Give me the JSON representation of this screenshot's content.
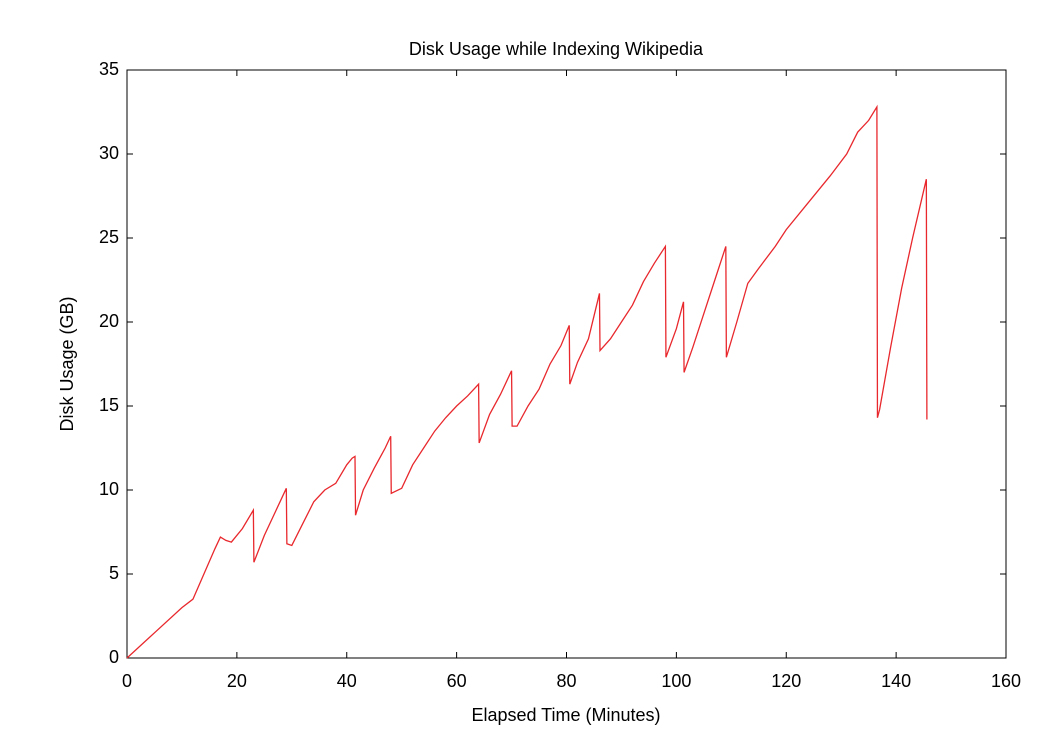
{
  "chart_data": {
    "type": "line",
    "title": "Disk Usage while Indexing Wikipedia",
    "x_label": "Elapsed Time (Minutes)",
    "y_label": "Disk Usage (GB)",
    "xlim": [
      0,
      160
    ],
    "xticks": [
      0,
      20,
      40,
      60,
      80,
      100,
      120,
      140,
      160
    ],
    "ylim": [
      0,
      35
    ],
    "yticks": [
      0,
      5,
      10,
      15,
      20,
      25,
      30,
      35
    ],
    "grid": false,
    "series": [
      {
        "name": "Disk Usage",
        "color": "#e8282d",
        "x": [
          0,
          5,
          10,
          12,
          14,
          16,
          17,
          18,
          19,
          21,
          23,
          23.1,
          25,
          27,
          29,
          29.1,
          30,
          32,
          34,
          36,
          38,
          40,
          41,
          41.5,
          41.6,
          43,
          45,
          47,
          48,
          48.1,
          50,
          52,
          54,
          56,
          58,
          60,
          62,
          64,
          64.1,
          66,
          68,
          70,
          70.1,
          71,
          73,
          75,
          77,
          79,
          80.5,
          80.6,
          82,
          84,
          86,
          86.1,
          88,
          90,
          92,
          94,
          96,
          98,
          98.1,
          100,
          101.3,
          101.4,
          103,
          105,
          107,
          109,
          109.1,
          111,
          113,
          115,
          118,
          120,
          124,
          128,
          131,
          133,
          135,
          136.5,
          136.6,
          137,
          139,
          141,
          143,
          145.5,
          145.6
        ],
        "values": [
          0,
          1.5,
          3,
          3.5,
          5,
          6.5,
          7.2,
          7,
          6.9,
          7.7,
          8.8,
          5.7,
          7.3,
          8.7,
          10.1,
          6.8,
          6.7,
          8,
          9.3,
          10,
          10.4,
          11.5,
          11.9,
          12,
          8.5,
          10,
          11.3,
          12.5,
          13.2,
          9.8,
          10.1,
          11.5,
          12.5,
          13.5,
          14.3,
          15,
          15.6,
          16.3,
          12.8,
          14.5,
          15.7,
          17.1,
          13.8,
          13.8,
          15,
          16,
          17.5,
          18.6,
          19.8,
          16.3,
          17.6,
          19,
          21.7,
          18.3,
          19,
          20,
          21,
          22.4,
          23.5,
          24.5,
          17.9,
          19.6,
          21.2,
          17,
          18.5,
          20.5,
          22.5,
          24.5,
          17.9,
          20,
          22.3,
          23.2,
          24.5,
          25.5,
          27.1,
          28.7,
          30,
          31.3,
          32,
          32.8,
          14.3,
          14.8,
          18.5,
          22,
          25,
          28.5,
          14.2
        ]
      }
    ]
  }
}
